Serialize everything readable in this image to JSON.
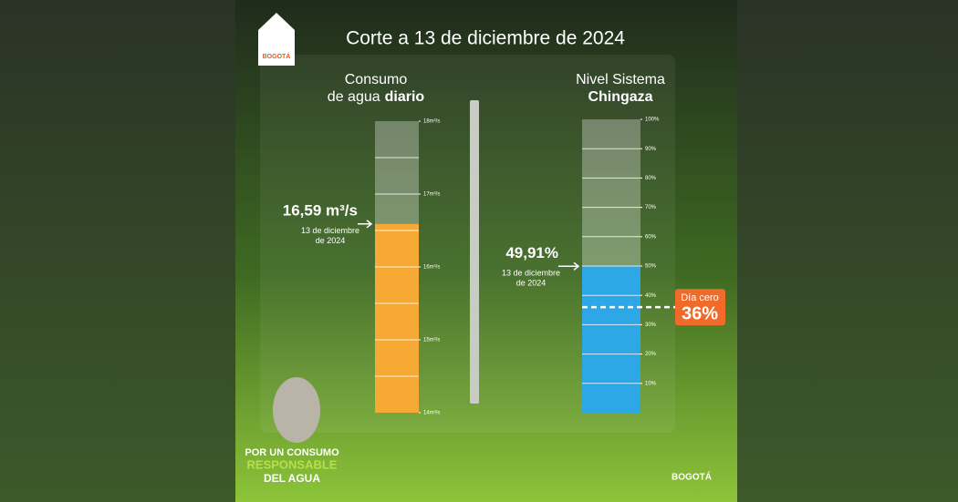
{
  "header": {
    "title": "Corte a 13 de diciembre de 2024",
    "logo_text": "BOGOTÁ"
  },
  "gauges": [
    {
      "title": [
        "Consumo",
        "de agua"
      ],
      "title_bold": "diario",
      "value": 16.59,
      "value_label": "16,59 m³/s",
      "date": [
        "13 de diciembre",
        "de 2024"
      ],
      "color": "#f6a935",
      "ylim": [
        14,
        18
      ],
      "yticks": [
        {
          "value": 14,
          "label": "14m³/s"
        },
        {
          "value": 15,
          "label": "15m³/s"
        },
        {
          "value": 16,
          "label": "16m³/s"
        },
        {
          "value": 17,
          "label": "17m³/s"
        },
        {
          "value": 18,
          "label": "18m³/s"
        }
      ]
    },
    {
      "title": [
        "Nivel Sistema"
      ],
      "title_bold": "Chingaza",
      "value": 49.91,
      "value_label": "49,91%",
      "date": [
        "13 de diciembre",
        "de 2024"
      ],
      "color": "#2ea7e6",
      "ylim": [
        0,
        100
      ],
      "yticks": [
        {
          "value": 10,
          "label": "10%"
        },
        {
          "value": 20,
          "label": "20%"
        },
        {
          "value": 30,
          "label": "30%"
        },
        {
          "value": 40,
          "label": "40%"
        },
        {
          "value": 50,
          "label": "50%"
        },
        {
          "value": 60,
          "label": "60%"
        },
        {
          "value": 70,
          "label": "70%"
        },
        {
          "value": 80,
          "label": "80%"
        },
        {
          "value": 90,
          "label": "90%"
        },
        {
          "value": 100,
          "label": "100%"
        }
      ],
      "threshold": {
        "label": "Día cero",
        "value": 36,
        "value_label": "36%",
        "color": "#f06a2a"
      }
    }
  ],
  "footer": {
    "slogan": [
      "POR UN CONSUMO",
      "RESPONSABLE",
      "DEL AGUA"
    ],
    "logo": "BOGOTÁ"
  }
}
